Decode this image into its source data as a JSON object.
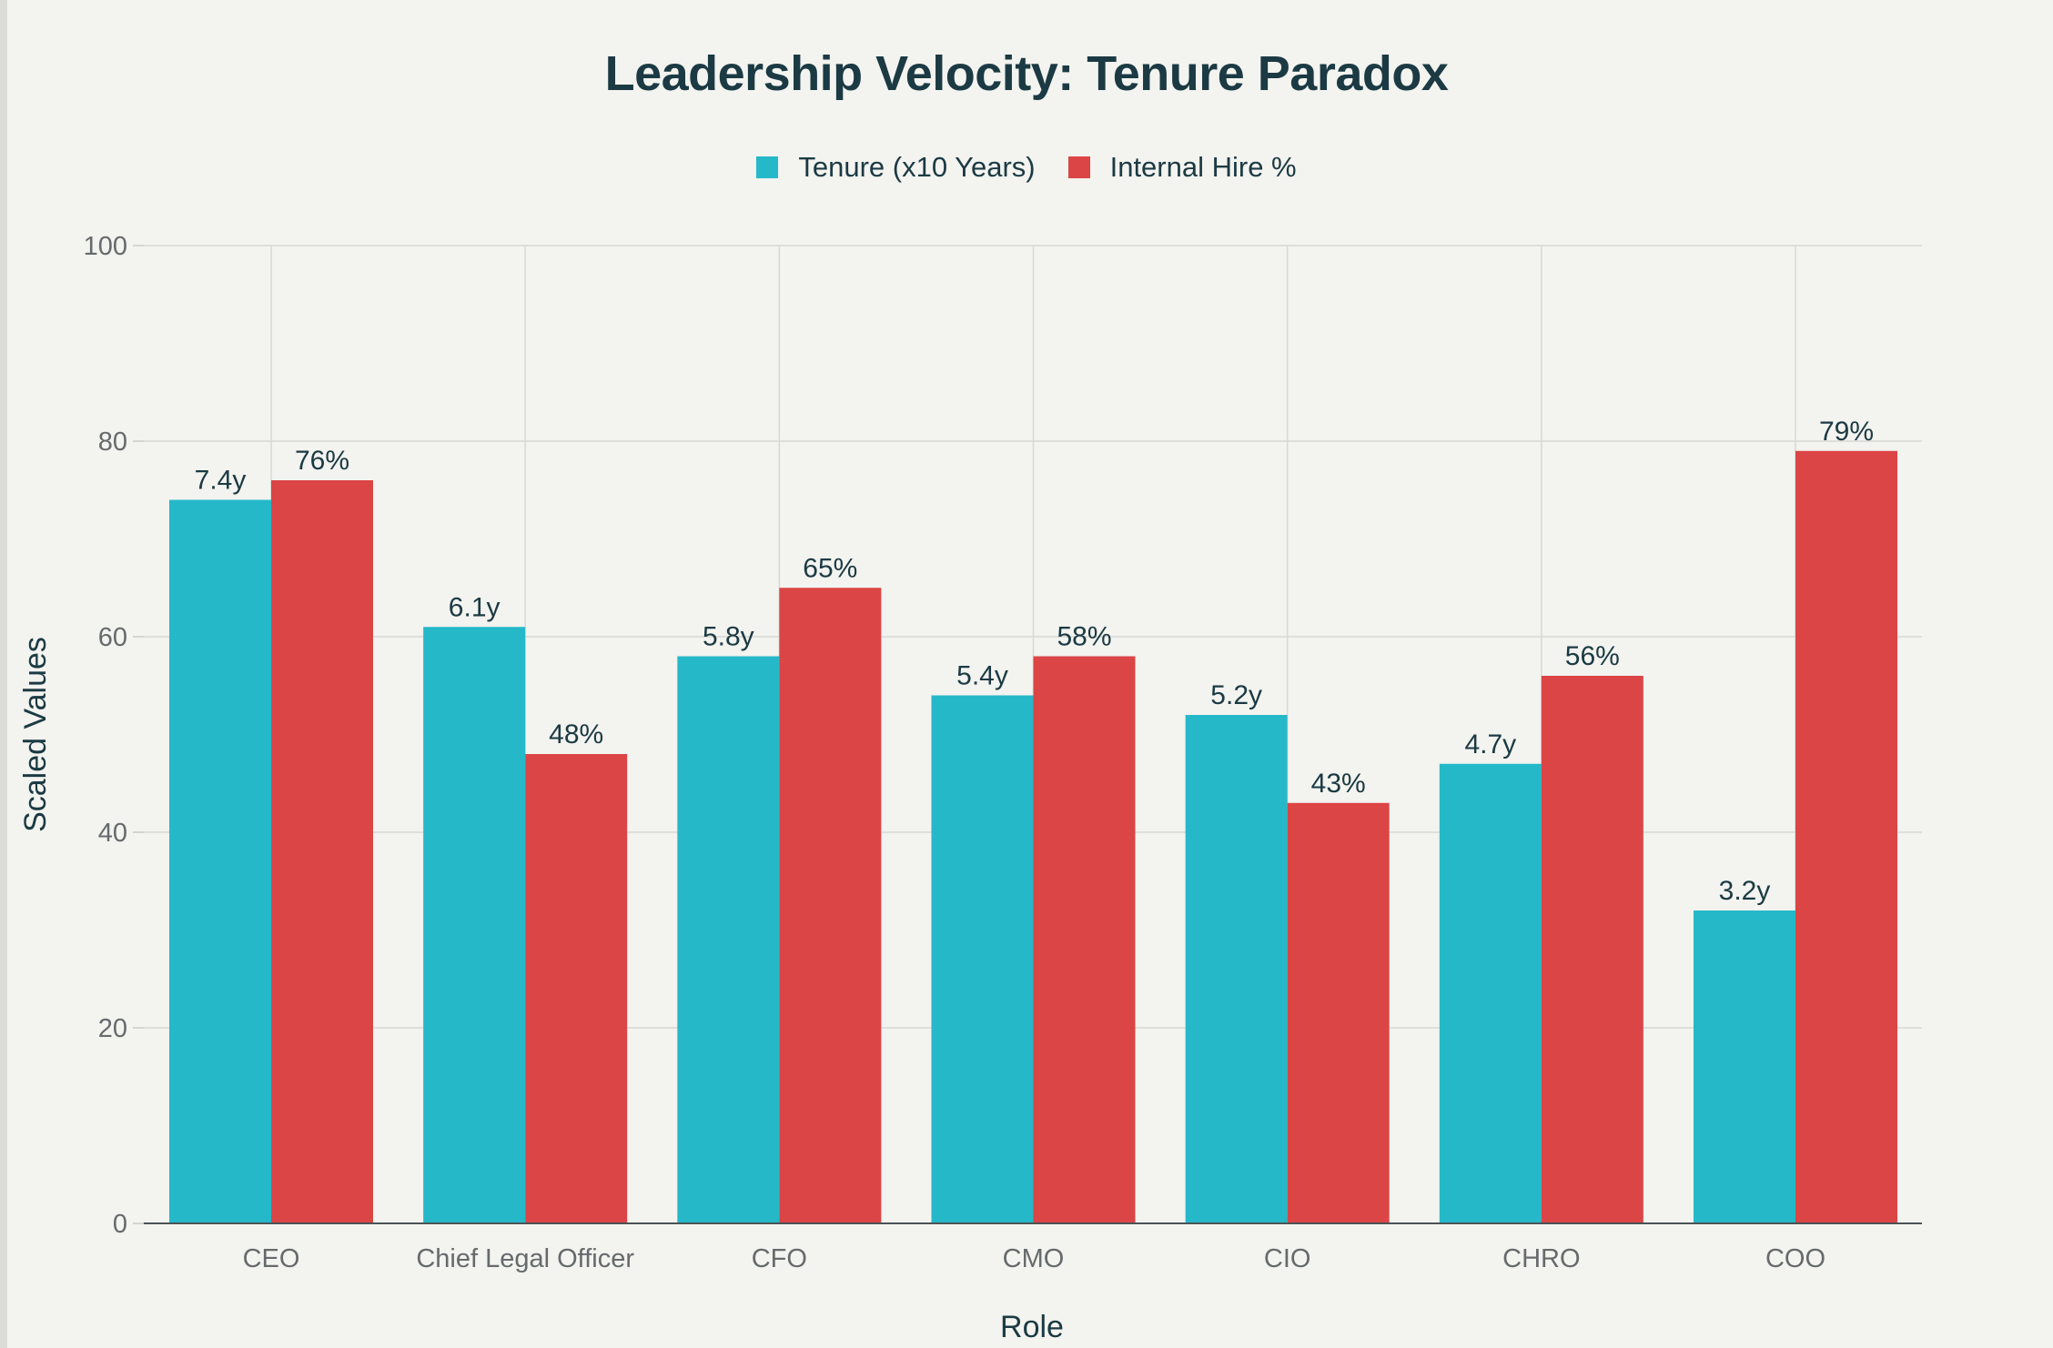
{
  "chart_data": {
    "type": "bar",
    "title": "Leadership Velocity: Tenure Paradox",
    "xlabel": "Role",
    "ylabel": "Scaled Values",
    "ylim": [
      0,
      100
    ],
    "yticks": [
      0,
      20,
      40,
      60,
      80,
      100
    ],
    "grid": true,
    "legend_position": "top-center",
    "categories": [
      "CEO",
      "Chief Legal Officer",
      "CFO",
      "CMO",
      "CIO",
      "CHRO",
      "COO"
    ],
    "series": [
      {
        "name": "Tenure (x10 Years)",
        "color": "#25b8c9",
        "values": [
          74,
          61,
          58,
          54,
          52,
          47,
          32
        ],
        "labels": [
          "7.4y",
          "6.1y",
          "5.8y",
          "5.4y",
          "5.2y",
          "4.7y",
          "3.2y"
        ]
      },
      {
        "name": "Internal Hire %",
        "color": "#db4545",
        "values": [
          76,
          48,
          65,
          58,
          43,
          56,
          79
        ],
        "labels": [
          "76%",
          "48%",
          "65%",
          "58%",
          "43%",
          "56%",
          "79%"
        ]
      }
    ]
  }
}
